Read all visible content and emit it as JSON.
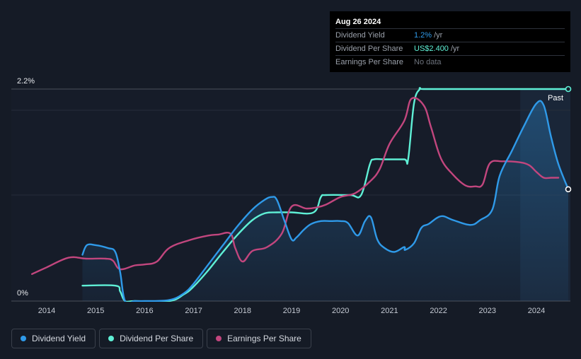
{
  "tooltip": {
    "date": "Aug 26 2024",
    "rows": [
      {
        "label": "Dividend Yield",
        "value": "1.2%",
        "unit": "/yr"
      },
      {
        "label": "Dividend Per Share",
        "value": "US$2.400",
        "unit": "/yr"
      },
      {
        "label": "Earnings Per Share",
        "value": "No data",
        "unit": ""
      }
    ]
  },
  "legend": [
    {
      "label": "Dividend Yield",
      "color": "#2f9ae9"
    },
    {
      "label": "Dividend Per Share",
      "color": "#5ff0d6"
    },
    {
      "label": "Earnings Per Share",
      "color": "#c2467e"
    }
  ],
  "past_label": "Past",
  "chart_data": {
    "type": "line",
    "y_ticks": [
      {
        "value": 2.2,
        "label": "2.2%"
      },
      {
        "value": 0,
        "label": "0%"
      }
    ],
    "ylim": [
      0,
      2.2
    ],
    "xlim": [
      2013.6,
      2024.67
    ],
    "x_ticks": [
      2014,
      2015,
      2016,
      2017,
      2018,
      2019,
      2020,
      2021,
      2022,
      2023,
      2024
    ],
    "forecast_region_start": 2023.67,
    "grid": true,
    "legend_position": "bottom-left",
    "series": [
      {
        "name": "Dividend Yield",
        "color": "#2f9ae9",
        "area": true,
        "x": [
          2014.73,
          2014.82,
          2015.0,
          2015.25,
          2015.4,
          2015.5,
          2015.6,
          2015.8,
          2016.0,
          2016.5,
          2016.8,
          2017.0,
          2017.3,
          2017.6,
          2017.9,
          2018.2,
          2018.45,
          2018.6,
          2018.7,
          2018.85,
          2019.0,
          2019.1,
          2019.25,
          2019.4,
          2019.6,
          2019.8,
          2020.0,
          2020.15,
          2020.35,
          2020.5,
          2020.62,
          2020.75,
          2020.9,
          2021.1,
          2021.3,
          2021.32,
          2021.5,
          2021.65,
          2021.8,
          2022.05,
          2022.3,
          2022.65,
          2022.85,
          2023.1,
          2023.25,
          2023.5,
          2023.75,
          2024.0,
          2024.15,
          2024.3,
          2024.45,
          2024.65
        ],
        "y": [
          0.48,
          0.58,
          0.58,
          0.55,
          0.51,
          0.3,
          0.0,
          0.0,
          0.0,
          0.01,
          0.08,
          0.18,
          0.38,
          0.58,
          0.78,
          0.95,
          1.05,
          1.08,
          1.05,
          0.84,
          0.64,
          0.66,
          0.74,
          0.8,
          0.83,
          0.83,
          0.83,
          0.81,
          0.68,
          0.83,
          0.87,
          0.64,
          0.55,
          0.51,
          0.56,
          0.53,
          0.6,
          0.76,
          0.8,
          0.88,
          0.84,
          0.79,
          0.84,
          0.95,
          1.3,
          1.56,
          1.82,
          2.05,
          2.03,
          1.7,
          1.42,
          1.16
        ]
      },
      {
        "name": "Dividend Per Share",
        "color": "#5ff0d6",
        "area": false,
        "x": [
          2014.73,
          2015.4,
          2015.5,
          2015.6,
          2015.8,
          2016.5,
          2016.8,
          2017.0,
          2017.3,
          2017.6,
          2017.9,
          2018.2,
          2018.45,
          2018.7,
          2019.0,
          2019.45,
          2019.6,
          2019.7,
          2020.2,
          2020.42,
          2020.6,
          2020.68,
          2020.9,
          2021.3,
          2021.38,
          2021.5,
          2021.62,
          2021.7,
          2022.5,
          2023.5,
          2024.67
        ],
        "y": [
          0.16,
          0.16,
          0.1,
          0.0,
          0.0,
          0.0,
          0.07,
          0.15,
          0.32,
          0.51,
          0.69,
          0.84,
          0.91,
          0.92,
          0.92,
          0.92,
          1.08,
          1.1,
          1.1,
          1.1,
          1.42,
          1.47,
          1.47,
          1.47,
          1.47,
          2.05,
          2.2,
          2.2,
          2.2,
          2.2,
          2.2
        ]
      },
      {
        "name": "Earnings Per Share",
        "color": "#c2467e",
        "area": false,
        "x": [
          2013.7,
          2014.0,
          2014.45,
          2014.8,
          2015.2,
          2015.35,
          2015.5,
          2015.8,
          2016.0,
          2016.25,
          2016.5,
          2016.9,
          2017.3,
          2017.5,
          2017.75,
          2017.85,
          2018.0,
          2018.2,
          2018.5,
          2018.8,
          2019.0,
          2019.3,
          2019.5,
          2019.7,
          2020.0,
          2020.3,
          2020.6,
          2020.8,
          2021.0,
          2021.3,
          2021.45,
          2021.7,
          2021.85,
          2022.05,
          2022.3,
          2022.55,
          2022.75,
          2022.9,
          2023.05,
          2023.3,
          2023.65,
          2023.85,
          2024.0,
          2024.15,
          2024.3,
          2024.45
        ],
        "y": [
          0.28,
          0.35,
          0.45,
          0.44,
          0.44,
          0.42,
          0.33,
          0.37,
          0.38,
          0.41,
          0.55,
          0.63,
          0.68,
          0.69,
          0.7,
          0.55,
          0.41,
          0.52,
          0.56,
          0.7,
          0.98,
          0.96,
          0.97,
          1.0,
          1.08,
          1.12,
          1.24,
          1.37,
          1.63,
          1.87,
          2.1,
          2.03,
          1.8,
          1.48,
          1.31,
          1.2,
          1.19,
          1.21,
          1.43,
          1.45,
          1.44,
          1.41,
          1.34,
          1.28,
          1.28,
          1.28
        ]
      }
    ]
  }
}
